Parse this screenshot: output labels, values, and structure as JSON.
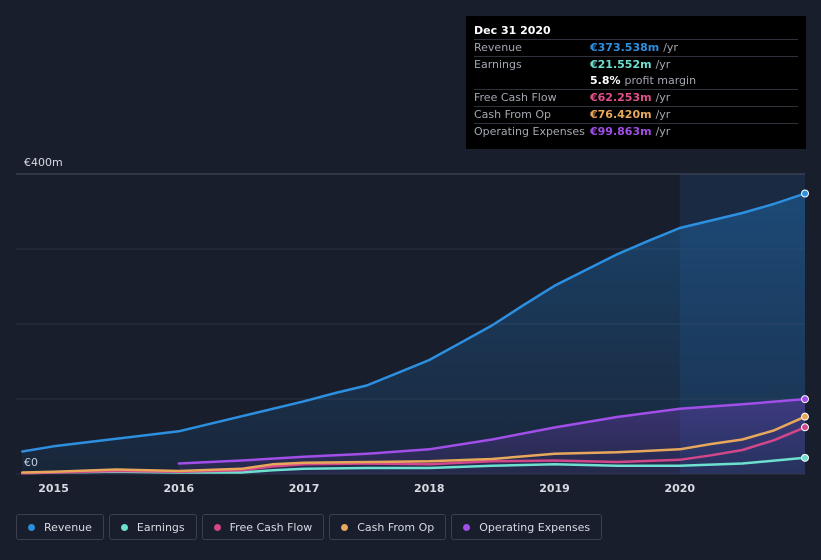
{
  "tooltip": {
    "date": "Dec 31 2020",
    "rows": [
      {
        "label": "Revenue",
        "value": "€373.538m",
        "unit": "/yr",
        "color": "#2d8fe0"
      },
      {
        "label": "Earnings",
        "value": "€21.552m",
        "unit": "/yr",
        "color": "#6de0cf"
      },
      {
        "label": "",
        "value": "5.8%",
        "unit": "profit margin",
        "color": "#ffffff"
      },
      {
        "label": "Free Cash Flow",
        "value": "€62.253m",
        "unit": "/yr",
        "color": "#e0508c"
      },
      {
        "label": "Cash From Op",
        "value": "€76.420m",
        "unit": "/yr",
        "color": "#e8a85c"
      },
      {
        "label": "Operating Expenses",
        "value": "€99.863m",
        "unit": "/yr",
        "color": "#a24ee8"
      }
    ]
  },
  "legend": [
    {
      "label": "Revenue",
      "color": "#2d8fe0"
    },
    {
      "label": "Earnings",
      "color": "#6de0cf"
    },
    {
      "label": "Free Cash Flow",
      "color": "#d2478a"
    },
    {
      "label": "Cash From Op",
      "color": "#e8a85c"
    },
    {
      "label": "Operating Expenses",
      "color": "#a24ee8"
    }
  ],
  "chart_data": {
    "type": "area",
    "title": "",
    "ylabel_top": "€400m",
    "ylabel_bottom": "€0",
    "ylim": [
      0,
      400
    ],
    "xlim": [
      2014.7,
      2021.0
    ],
    "x_ticks": [
      2015,
      2016,
      2017,
      2018,
      2019,
      2020
    ],
    "x_tick_labels": [
      "2015",
      "2016",
      "2017",
      "2018",
      "2019",
      "2020"
    ],
    "highlight_from": 2020.0,
    "series": [
      {
        "name": "Revenue",
        "color": "#2d8fe0",
        "fill": true,
        "x": [
          2014.75,
          2015.0,
          2015.5,
          2016.0,
          2016.5,
          2017.0,
          2017.25,
          2017.5,
          2017.75,
          2018.0,
          2018.25,
          2018.5,
          2018.75,
          2019.0,
          2019.25,
          2019.5,
          2019.75,
          2020.0,
          2020.25,
          2020.5,
          2020.75,
          2021.0
        ],
        "values": [
          30,
          37,
          47,
          57,
          77,
          97,
          108,
          118,
          135,
          152,
          175,
          198,
          225,
          251,
          272,
          293,
          311,
          328,
          338,
          348,
          360,
          374
        ]
      },
      {
        "name": "Operating Expenses",
        "color": "#a24ee8",
        "fill": true,
        "x": [
          2016.0,
          2016.25,
          2016.5,
          2017.0,
          2017.5,
          2018.0,
          2018.5,
          2019.0,
          2019.5,
          2020.0,
          2020.5,
          2021.0
        ],
        "values": [
          14,
          16,
          18,
          23,
          27,
          33,
          46,
          62,
          76,
          87,
          93,
          99.863
        ]
      },
      {
        "name": "Cash From Op",
        "color": "#e8a85c",
        "fill": false,
        "x": [
          2014.75,
          2015.0,
          2015.5,
          2016.0,
          2016.5,
          2016.75,
          2017.0,
          2017.5,
          2018.0,
          2018.5,
          2019.0,
          2019.5,
          2020.0,
          2020.25,
          2020.5,
          2020.75,
          2021.0
        ],
        "values": [
          2,
          3,
          6,
          4,
          7,
          13,
          15,
          16,
          17,
          20,
          27,
          29,
          33,
          40,
          46,
          58,
          76.42
        ]
      },
      {
        "name": "Free Cash Flow",
        "color": "#d2478a",
        "fill": false,
        "x": [
          2014.75,
          2015.0,
          2015.5,
          2016.0,
          2016.5,
          2016.75,
          2017.0,
          2017.5,
          2018.0,
          2018.5,
          2019.0,
          2019.5,
          2020.0,
          2020.25,
          2020.5,
          2020.75,
          2021.0
        ],
        "values": [
          1,
          2,
          4,
          3,
          5,
          10,
          13,
          14,
          13,
          17,
          18,
          16,
          19,
          25,
          32,
          45,
          62.253
        ]
      },
      {
        "name": "Earnings",
        "color": "#6de0cf",
        "fill": false,
        "x": [
          2014.75,
          2015.0,
          2015.5,
          2016.0,
          2016.5,
          2016.75,
          2017.0,
          2017.5,
          2018.0,
          2018.5,
          2019.0,
          2019.5,
          2020.0,
          2020.5,
          2021.0
        ],
        "values": [
          1,
          2,
          3,
          2,
          2,
          5,
          7,
          8,
          8,
          11,
          13,
          11,
          11,
          14,
          21.552
        ]
      }
    ]
  }
}
